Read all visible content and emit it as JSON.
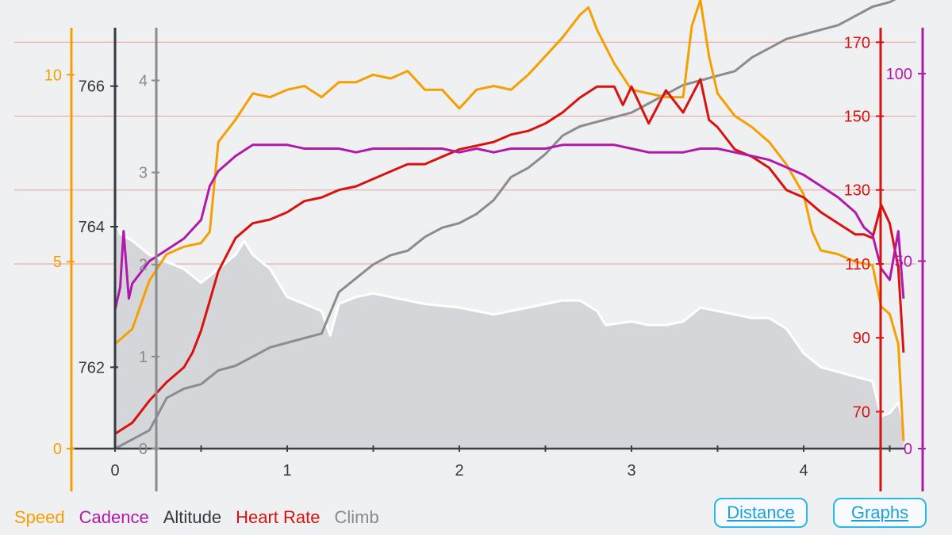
{
  "chart_data": {
    "type": "line",
    "title": "",
    "xlabel": "",
    "x_range": [
      0,
      4.6
    ],
    "x_ticks": [
      "0",
      "1",
      "2",
      "3",
      "4"
    ],
    "axes": {
      "speed": {
        "color": "#f5a000",
        "range": [
          0,
          12
        ],
        "ticks": [
          "0",
          "5",
          "10"
        ]
      },
      "altitude": {
        "color": "#333a40",
        "range": [
          761.0,
          767.0
        ],
        "ticks": [
          "762",
          "764",
          "766"
        ]
      },
      "climb": {
        "color": "#8a8a8a",
        "range": [
          0,
          4.4
        ],
        "ticks": [
          "0",
          "1",
          "2",
          "3",
          "4"
        ]
      },
      "heartrate": {
        "color": "#d8120f",
        "range": [
          60,
          175
        ],
        "ticks": [
          "70",
          "90",
          "110",
          "130",
          "150",
          "170"
        ]
      },
      "cadence": {
        "color": "#b01aab",
        "range": [
          0,
          108
        ],
        "ticks": [
          "0",
          "50",
          "100"
        ]
      }
    },
    "series": [
      {
        "name": "Altitude",
        "axis": "altitude",
        "color": "#ffffff",
        "fill": true,
        "x": [
          0,
          0.03,
          0.1,
          0.2,
          0.3,
          0.4,
          0.5,
          0.6,
          0.7,
          0.75,
          0.8,
          0.9,
          1.0,
          1.1,
          1.2,
          1.25,
          1.3,
          1.4,
          1.5,
          1.6,
          1.7,
          1.8,
          2.0,
          2.1,
          2.2,
          2.3,
          2.4,
          2.5,
          2.6,
          2.7,
          2.8,
          2.85,
          3.0,
          3.1,
          3.2,
          3.3,
          3.4,
          3.5,
          3.6,
          3.7,
          3.8,
          3.9,
          4.0,
          4.1,
          4.25,
          4.4,
          4.45,
          4.5,
          4.55,
          4.58
        ],
        "y": [
          764.1,
          763.9,
          763.8,
          763.6,
          763.5,
          763.4,
          763.2,
          763.4,
          763.6,
          763.8,
          763.6,
          763.4,
          763.0,
          762.9,
          762.8,
          762.45,
          762.9,
          763.0,
          763.05,
          763.0,
          762.95,
          762.9,
          762.85,
          762.8,
          762.75,
          762.8,
          762.85,
          762.9,
          762.95,
          762.95,
          762.8,
          762.6,
          762.65,
          762.6,
          762.6,
          762.65,
          762.85,
          762.8,
          762.75,
          762.7,
          762.7,
          762.55,
          762.2,
          762.0,
          761.9,
          761.8,
          761.3,
          761.35,
          761.5,
          761.2
        ]
      },
      {
        "name": "Climb",
        "axis": "climb",
        "color": "#8c8c8c",
        "x": [
          0,
          0.1,
          0.2,
          0.3,
          0.4,
          0.5,
          0.6,
          0.7,
          0.8,
          0.9,
          1.0,
          1.1,
          1.2,
          1.3,
          1.4,
          1.5,
          1.6,
          1.7,
          1.8,
          1.9,
          2.0,
          2.1,
          2.2,
          2.3,
          2.4,
          2.5,
          2.6,
          2.7,
          2.8,
          2.9,
          3.0,
          3.1,
          3.2,
          3.3,
          3.4,
          3.5,
          3.6,
          3.7,
          3.8,
          3.9,
          4.0,
          4.1,
          4.2,
          4.3,
          4.4,
          4.5,
          4.55,
          4.58
        ],
        "y": [
          0,
          0.1,
          0.2,
          0.55,
          0.65,
          0.7,
          0.85,
          0.9,
          1.0,
          1.1,
          1.15,
          1.2,
          1.25,
          1.7,
          1.85,
          2.0,
          2.1,
          2.15,
          2.3,
          2.4,
          2.45,
          2.55,
          2.7,
          2.95,
          3.05,
          3.2,
          3.4,
          3.5,
          3.55,
          3.6,
          3.65,
          3.75,
          3.85,
          3.95,
          4.0,
          4.05,
          4.1,
          4.25,
          4.35,
          4.45,
          4.5,
          4.55,
          4.6,
          4.7,
          4.8,
          4.85,
          4.9,
          5.05
        ]
      },
      {
        "name": "Speed",
        "axis": "speed",
        "color": "#f5a000",
        "x": [
          0,
          0.1,
          0.2,
          0.3,
          0.4,
          0.5,
          0.55,
          0.6,
          0.7,
          0.8,
          0.9,
          1.0,
          1.1,
          1.2,
          1.3,
          1.4,
          1.5,
          1.6,
          1.7,
          1.8,
          1.9,
          2.0,
          2.1,
          2.2,
          2.3,
          2.4,
          2.5,
          2.6,
          2.7,
          2.75,
          2.8,
          2.9,
          3.0,
          3.1,
          3.2,
          3.3,
          3.35,
          3.4,
          3.45,
          3.5,
          3.6,
          3.7,
          3.8,
          3.9,
          4.0,
          4.05,
          4.1,
          4.2,
          4.3,
          4.4,
          4.45,
          4.5,
          4.55,
          4.58
        ],
        "y": [
          2.8,
          3.2,
          4.5,
          5.2,
          5.4,
          5.5,
          5.8,
          8.2,
          8.8,
          9.5,
          9.4,
          9.6,
          9.7,
          9.4,
          9.8,
          9.8,
          10.0,
          9.9,
          10.1,
          9.6,
          9.6,
          9.1,
          9.6,
          9.7,
          9.6,
          10.0,
          10.5,
          11.0,
          11.6,
          11.8,
          11.2,
          10.3,
          9.6,
          9.5,
          9.4,
          9.4,
          11.3,
          12.0,
          10.5,
          9.5,
          8.9,
          8.6,
          8.2,
          7.6,
          6.8,
          5.8,
          5.3,
          5.2,
          5.0,
          4.9,
          3.8,
          3.6,
          2.8,
          0.2
        ]
      },
      {
        "name": "Heart Rate",
        "axis": "heartrate",
        "color": "#d8120f",
        "x": [
          0,
          0.1,
          0.2,
          0.3,
          0.4,
          0.45,
          0.5,
          0.55,
          0.6,
          0.7,
          0.8,
          0.9,
          1.0,
          1.1,
          1.2,
          1.3,
          1.4,
          1.5,
          1.6,
          1.7,
          1.8,
          1.9,
          2.0,
          2.1,
          2.2,
          2.3,
          2.4,
          2.5,
          2.6,
          2.7,
          2.8,
          2.9,
          2.95,
          3.0,
          3.1,
          3.2,
          3.3,
          3.4,
          3.45,
          3.5,
          3.6,
          3.7,
          3.8,
          3.9,
          4.0,
          4.1,
          4.2,
          4.3,
          4.35,
          4.4,
          4.45,
          4.5,
          4.55,
          4.58
        ],
        "y": [
          64,
          67,
          73,
          78,
          82,
          86,
          92,
          100,
          108,
          117,
          121,
          122,
          124,
          127,
          128,
          130,
          131,
          133,
          135,
          137,
          137,
          139,
          141,
          142,
          143,
          145,
          146,
          148,
          151,
          155,
          158,
          158,
          153,
          158,
          148,
          157,
          151,
          160,
          149,
          147,
          141,
          139,
          136,
          130,
          128,
          124,
          121,
          118,
          118,
          117,
          126,
          121,
          109,
          86
        ]
      },
      {
        "name": "Cadence",
        "axis": "cadence",
        "color": "#b01aab",
        "x": [
          0,
          0.03,
          0.05,
          0.08,
          0.1,
          0.2,
          0.3,
          0.4,
          0.5,
          0.55,
          0.6,
          0.7,
          0.8,
          0.9,
          1.0,
          1.1,
          1.2,
          1.3,
          1.4,
          1.5,
          1.6,
          1.7,
          1.8,
          1.9,
          2.0,
          2.1,
          2.2,
          2.3,
          2.4,
          2.5,
          2.6,
          2.7,
          2.8,
          2.9,
          3.0,
          3.1,
          3.2,
          3.3,
          3.4,
          3.5,
          3.6,
          3.7,
          3.8,
          3.9,
          4.0,
          4.1,
          4.2,
          4.3,
          4.35,
          4.4,
          4.45,
          4.5,
          4.55,
          4.58
        ],
        "y": [
          37,
          43,
          58,
          40,
          44,
          50,
          53,
          56,
          61,
          70,
          74,
          78,
          81,
          81,
          81,
          80,
          80,
          80,
          79,
          80,
          80,
          80,
          80,
          80,
          79,
          80,
          79,
          80,
          80,
          80,
          81,
          81,
          81,
          81,
          80,
          79,
          79,
          79,
          80,
          80,
          79,
          78,
          77,
          75,
          73,
          70,
          67,
          63,
          59,
          57,
          48,
          45,
          58,
          40
        ]
      }
    ],
    "legend": [
      "Speed",
      "Cadence",
      "Altitude",
      "Heart Rate",
      "Climb"
    ],
    "legend_placement": "bottom-left",
    "grid": true
  },
  "legend_items": [
    {
      "label": "Speed",
      "color": "#f5a000"
    },
    {
      "label": "Cadence",
      "color": "#b01aab"
    },
    {
      "label": "Altitude",
      "color": "#333a40"
    },
    {
      "label": "Heart Rate",
      "color": "#d8120f"
    },
    {
      "label": "Climb",
      "color": "#8a8a8a"
    }
  ],
  "buttons": {
    "distance_label": "Distance",
    "graphs_label": "Graphs"
  }
}
